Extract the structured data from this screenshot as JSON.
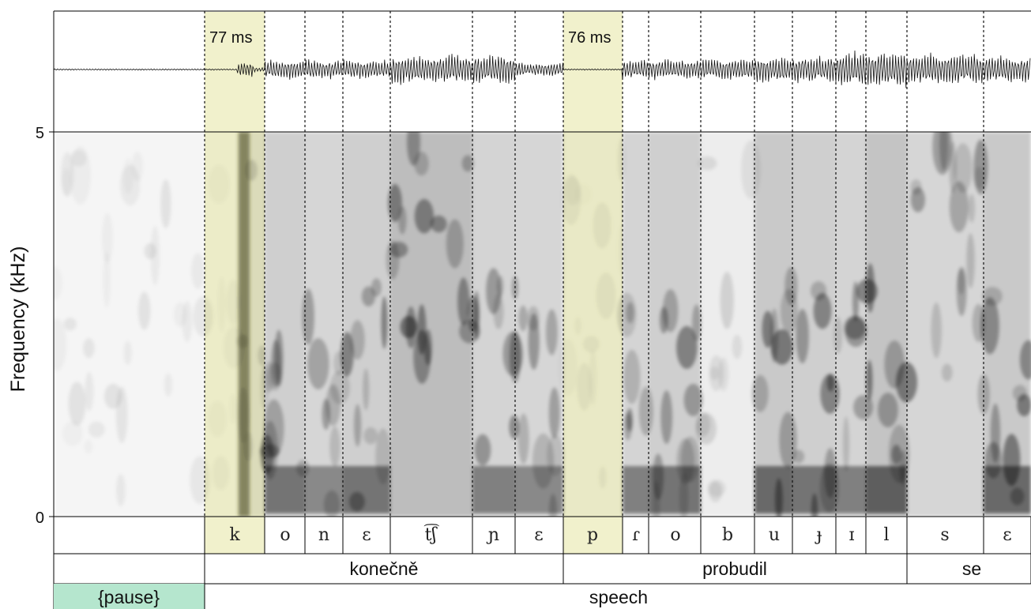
{
  "y_axis": {
    "label": "Frequency (kHz)",
    "ticks": [
      "5",
      "0"
    ]
  },
  "highlight_labels": [
    "77 ms",
    "76 ms"
  ],
  "phones": [
    "k",
    "o",
    "n",
    "ɛ",
    "t͡ʃ",
    "ɲ",
    "ɛ",
    "p",
    "ɾ",
    "o",
    "b",
    "u",
    "ɟ",
    "ɪ",
    "l",
    "s",
    "ɛ"
  ],
  "words": [
    "konečně",
    "probudil",
    "se"
  ],
  "segments": [
    "{pause}",
    "speech"
  ],
  "colors": {
    "highlight": "#f1f1cc",
    "pause_fill": "#b5e6ce",
    "line": "#000000",
    "boundary": "#111111"
  }
}
